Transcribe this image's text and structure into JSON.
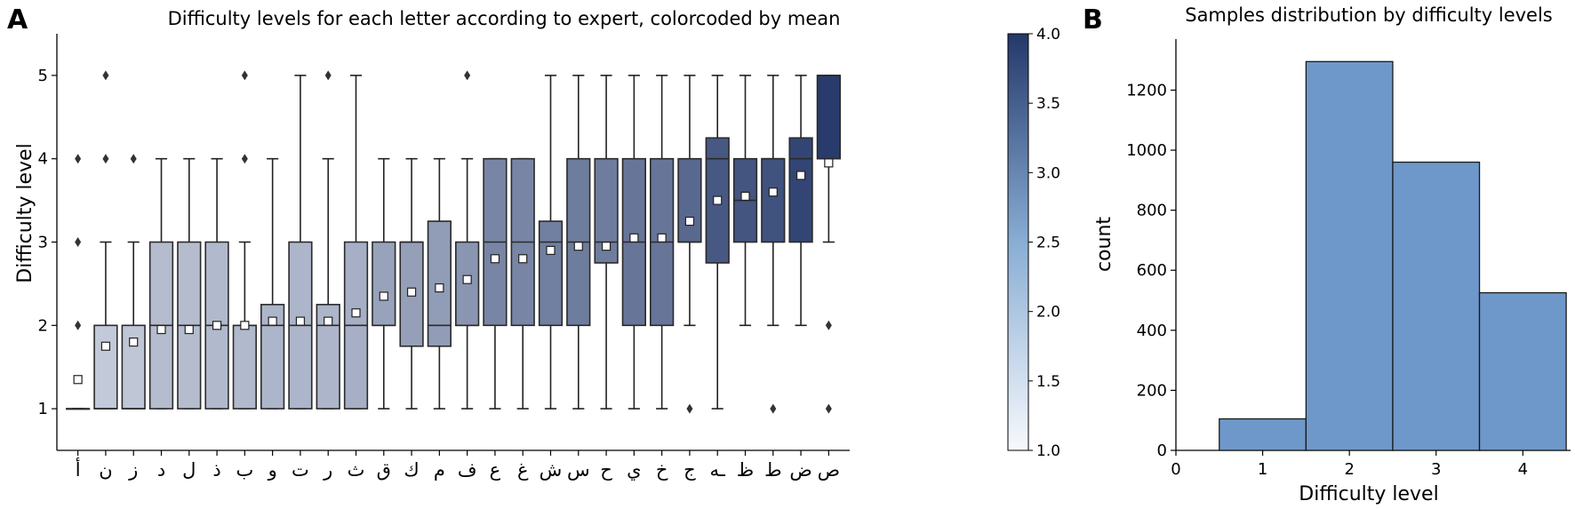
{
  "panels": {
    "a": "A",
    "b": "B"
  },
  "chart_data": [
    {
      "type": "box",
      "title": "Difficulty levels for each letter according to expert, colorcoded by mean",
      "xlabel": "",
      "ylabel": "Difficulty level",
      "ylim": [
        0.5,
        5.5
      ],
      "yticks": [
        1,
        2,
        3,
        4,
        5
      ],
      "color_scale": {
        "min": 1.0,
        "max": 4.0,
        "low_color": "#f7f9fd",
        "high_color": "#24386a"
      },
      "colorbar_ticks": [
        "1.0",
        "1.5",
        "2.0",
        "2.5",
        "3.0",
        "3.5",
        "4.0"
      ],
      "categories": [
        "أ",
        "ن",
        "ز",
        "د",
        "ل",
        "ذ",
        "ب",
        "و",
        "ت",
        "ر",
        "ث",
        "ق",
        "ك",
        "م",
        "ف",
        "ع",
        "غ",
        "ش",
        "س",
        "ح",
        "ي",
        "خ",
        "ج",
        "ـه",
        "ظ",
        "ط",
        "ض",
        "ص"
      ],
      "boxes": [
        {
          "whislo": 1,
          "q1": 1,
          "med": 1,
          "q3": 1,
          "whishi": 1,
          "mean": 1.35,
          "fliers": [
            2,
            3,
            4
          ]
        },
        {
          "whislo": 1,
          "q1": 1,
          "med": 1,
          "q3": 2,
          "whishi": 3,
          "mean": 1.75,
          "fliers": [
            4,
            5
          ]
        },
        {
          "whislo": 1,
          "q1": 1,
          "med": 1,
          "q3": 2,
          "whishi": 3,
          "mean": 1.8,
          "fliers": [
            4
          ]
        },
        {
          "whislo": 1,
          "q1": 1,
          "med": 2,
          "q3": 3,
          "whishi": 4,
          "mean": 1.95,
          "fliers": []
        },
        {
          "whislo": 1,
          "q1": 1,
          "med": 2,
          "q3": 3,
          "whishi": 4,
          "mean": 1.95,
          "fliers": []
        },
        {
          "whislo": 1,
          "q1": 1,
          "med": 2,
          "q3": 3,
          "whishi": 4,
          "mean": 2.0,
          "fliers": []
        },
        {
          "whislo": 1,
          "q1": 1,
          "med": 2,
          "q3": 2,
          "whishi": 3,
          "mean": 2.0,
          "fliers": [
            4,
            5
          ]
        },
        {
          "whislo": 1,
          "q1": 1,
          "med": 2,
          "q3": 2.25,
          "whishi": 4,
          "mean": 2.05,
          "fliers": []
        },
        {
          "whislo": 1,
          "q1": 1,
          "med": 2,
          "q3": 3,
          "whishi": 5,
          "mean": 2.05,
          "fliers": []
        },
        {
          "whislo": 1,
          "q1": 1,
          "med": 2,
          "q3": 2.25,
          "whishi": 4,
          "mean": 2.05,
          "fliers": [
            5
          ]
        },
        {
          "whislo": 1,
          "q1": 1,
          "med": 2,
          "q3": 3,
          "whishi": 5,
          "mean": 2.15,
          "fliers": []
        },
        {
          "whislo": 1,
          "q1": 2,
          "med": 2,
          "q3": 3,
          "whishi": 4,
          "mean": 2.35,
          "fliers": []
        },
        {
          "whislo": 1,
          "q1": 1.75,
          "med": 3,
          "q3": 3,
          "whishi": 4,
          "mean": 2.4,
          "fliers": []
        },
        {
          "whislo": 1,
          "q1": 1.75,
          "med": 2,
          "q3": 3.25,
          "whishi": 4,
          "mean": 2.45,
          "fliers": []
        },
        {
          "whislo": 1,
          "q1": 2,
          "med": 2,
          "q3": 3,
          "whishi": 4,
          "mean": 2.55,
          "fliers": [
            5
          ]
        },
        {
          "whislo": 1,
          "q1": 2,
          "med": 3,
          "q3": 4,
          "whishi": 4,
          "mean": 2.8,
          "fliers": []
        },
        {
          "whislo": 1,
          "q1": 2,
          "med": 3,
          "q3": 4,
          "whishi": 4,
          "mean": 2.8,
          "fliers": []
        },
        {
          "whislo": 1,
          "q1": 2,
          "med": 3,
          "q3": 3.25,
          "whishi": 5,
          "mean": 2.9,
          "fliers": []
        },
        {
          "whislo": 1,
          "q1": 2,
          "med": 3,
          "q3": 4,
          "whishi": 5,
          "mean": 2.95,
          "fliers": []
        },
        {
          "whislo": 1,
          "q1": 2.75,
          "med": 3,
          "q3": 4,
          "whishi": 5,
          "mean": 2.95,
          "fliers": []
        },
        {
          "whislo": 1,
          "q1": 2,
          "med": 3,
          "q3": 4,
          "whishi": 5,
          "mean": 3.05,
          "fliers": []
        },
        {
          "whislo": 1,
          "q1": 2,
          "med": 3,
          "q3": 4,
          "whishi": 5,
          "mean": 3.05,
          "fliers": []
        },
        {
          "whislo": 2,
          "q1": 3,
          "med": 3,
          "q3": 4,
          "whishi": 5,
          "mean": 3.25,
          "fliers": [
            1
          ]
        },
        {
          "whislo": 1,
          "q1": 2.75,
          "med": 4,
          "q3": 4.25,
          "whishi": 5,
          "mean": 3.5,
          "fliers": []
        },
        {
          "whislo": 2,
          "q1": 3,
          "med": 3.5,
          "q3": 4,
          "whishi": 5,
          "mean": 3.55,
          "fliers": []
        },
        {
          "whislo": 2,
          "q1": 3,
          "med": 4,
          "q3": 4,
          "whishi": 5,
          "mean": 3.6,
          "fliers": [
            1
          ]
        },
        {
          "whislo": 2,
          "q1": 3,
          "med": 4,
          "q3": 4.25,
          "whishi": 5,
          "mean": 3.8,
          "fliers": []
        },
        {
          "whislo": 3,
          "q1": 4,
          "med": 5,
          "q3": 5,
          "whishi": 5,
          "mean": 3.95,
          "fliers": [
            1,
            2
          ]
        }
      ]
    },
    {
      "type": "bar",
      "title": "Samples distribution by difficulty levels",
      "xlabel": "Difficulty level",
      "ylabel": "count",
      "categories": [
        1,
        2,
        3,
        4
      ],
      "values": [
        105,
        1295,
        960,
        525
      ],
      "xlim": [
        0,
        4.55
      ],
      "xticks": [
        0,
        1,
        2,
        3,
        4
      ],
      "ylim": [
        0,
        1370
      ],
      "yticks": [
        0,
        200,
        400,
        600,
        800,
        1000,
        1200
      ],
      "color": "#6e98c9"
    }
  ]
}
